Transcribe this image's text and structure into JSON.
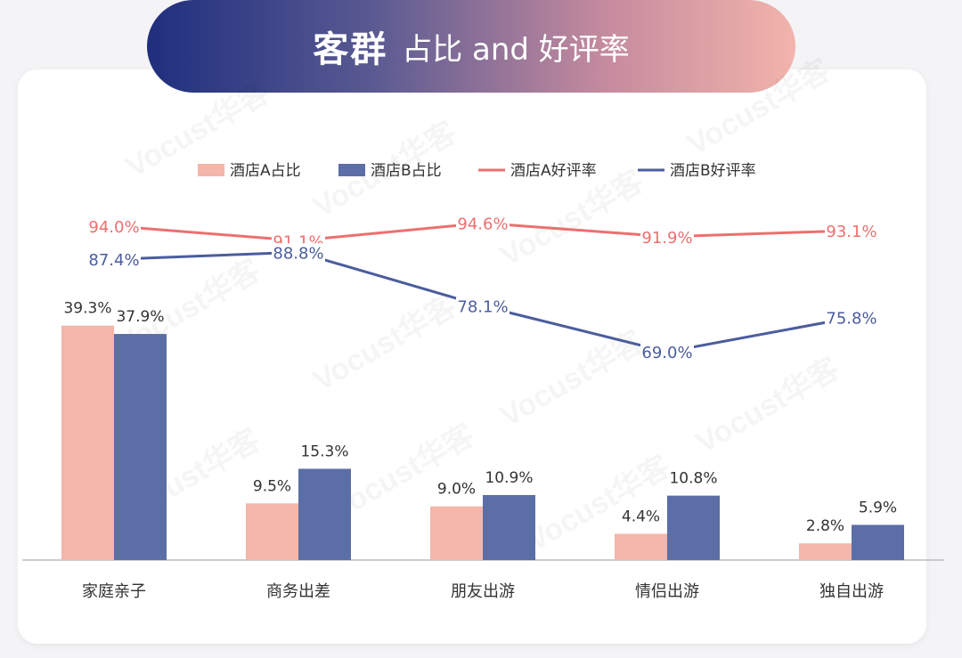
{
  "title": {
    "bold": "客群",
    "rest": "占比 and 好评率"
  },
  "watermark": "Vocust华客",
  "colors": {
    "hotelA_bar": "#f4b6aa",
    "hotelB_bar": "#5b6ea6",
    "hotelA_line": "#ee6f6f",
    "hotelB_line": "#4a5d9e",
    "axis": "#bbbbbb",
    "text": "#333333"
  },
  "chart_data": {
    "type": "bar",
    "categories": [
      "家庭亲子",
      "商务出差",
      "朋友出游",
      "情侣出游",
      "独自出游"
    ],
    "series": [
      {
        "name": "酒店A占比",
        "kind": "bar",
        "values": [
          39.3,
          9.5,
          9.0,
          4.4,
          2.8
        ],
        "labels": [
          "39.3%",
          "9.5%",
          "9.0%",
          "4.4%",
          "2.8%"
        ]
      },
      {
        "name": "酒店B占比",
        "kind": "bar",
        "values": [
          37.9,
          15.3,
          10.9,
          10.8,
          5.9
        ],
        "labels": [
          "37.9%",
          "15.3%",
          "10.9%",
          "10.8%",
          "5.9%"
        ]
      },
      {
        "name": "酒店A好评率",
        "kind": "line",
        "values": [
          94.0,
          91.1,
          94.6,
          91.9,
          93.1
        ],
        "labels": [
          "94.0%",
          "91.1%",
          "94.6%",
          "91.9%",
          "93.1%"
        ]
      },
      {
        "name": "酒店B好评率",
        "kind": "line",
        "values": [
          87.4,
          88.8,
          78.1,
          69.0,
          75.8
        ],
        "labels": [
          "87.4%",
          "88.8%",
          "78.1%",
          "69.0%",
          "75.8%"
        ]
      }
    ],
    "legend_position": "top-center",
    "grid": false
  }
}
